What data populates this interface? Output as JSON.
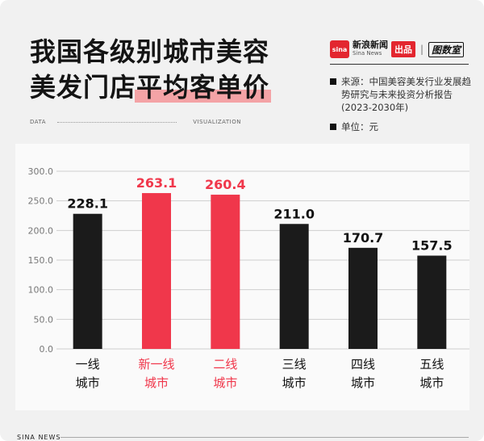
{
  "header": {
    "title_line1": "我国各级别城市美容",
    "title_line2_plain": "美发门店",
    "title_line2_highlight": "平均客单价"
  },
  "brand": {
    "logo_text": "sina",
    "name_cn": "新浪新闻",
    "name_en": "Sina News",
    "badge": "出品",
    "separator": "|",
    "partner": "图数室"
  },
  "info": {
    "source": "来源：中国美容美发行业发展趋势研究与未来投资分析报告(2023-2030年)",
    "unit": "单位：元"
  },
  "strip": {
    "left": "DATA",
    "right": "VISUALIZATION"
  },
  "footer": {
    "text": "SINA  NEWS"
  },
  "colors": {
    "dark_bar": "#1b1b1b",
    "highlight_bar": "#f0374b",
    "highlight_text": "#f0374b"
  },
  "chart_data": {
    "type": "bar",
    "categories": [
      [
        "一线",
        "城市"
      ],
      [
        "新一线",
        "城市"
      ],
      [
        "二线",
        "城市"
      ],
      [
        "三线",
        "城市"
      ],
      [
        "四线",
        "城市"
      ],
      [
        "五线",
        "城市"
      ]
    ],
    "values": [
      228.1,
      263.1,
      260.4,
      211.0,
      170.7,
      157.5
    ],
    "value_labels": [
      "228.1",
      "263.1",
      "260.4",
      "211.0",
      "170.7",
      "157.5"
    ],
    "highlighted": [
      false,
      true,
      true,
      false,
      false,
      false
    ],
    "yticks": [
      "0.0",
      "50.0",
      "100.0",
      "150.0",
      "200.0",
      "250.0",
      "300.0"
    ],
    "ylim": [
      0,
      300
    ],
    "grid": true
  }
}
